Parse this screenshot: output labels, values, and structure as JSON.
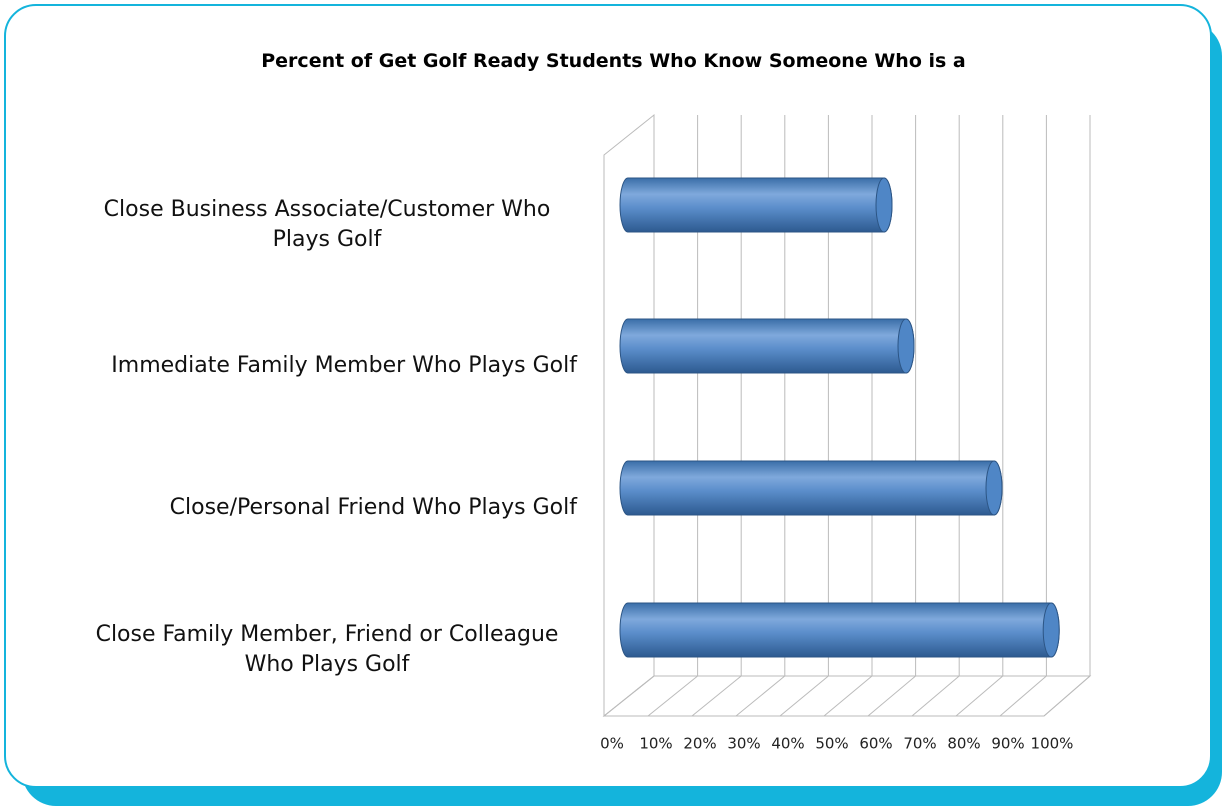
{
  "chart_data": {
    "type": "bar",
    "orientation": "horizontal",
    "title": "Percent of Get Golf Ready Students Who Know Someone Who is a",
    "categories": [
      "Close Business Associate/Customer Who Plays Golf",
      "Immediate Family Member Who Plays Golf",
      "Close/Personal Friend Who Plays Golf",
      "Close Family Member, Friend or Colleague Who Plays Golf"
    ],
    "values": [
      60,
      65,
      85,
      98
    ],
    "color": "#4f86c6",
    "xlim": [
      0,
      100
    ],
    "xticks": [
      {
        "value": 0,
        "label": "0%"
      },
      {
        "value": 10,
        "label": "10%"
      },
      {
        "value": 20,
        "label": "20%"
      },
      {
        "value": 30,
        "label": "30%"
      },
      {
        "value": 40,
        "label": "40%"
      },
      {
        "value": 50,
        "label": "50%"
      },
      {
        "value": 60,
        "label": "60%"
      },
      {
        "value": 70,
        "label": "70%"
      },
      {
        "value": 80,
        "label": "80%"
      },
      {
        "value": 90,
        "label": "90%"
      },
      {
        "value": 100,
        "label": "100%"
      }
    ],
    "grid": true
  }
}
